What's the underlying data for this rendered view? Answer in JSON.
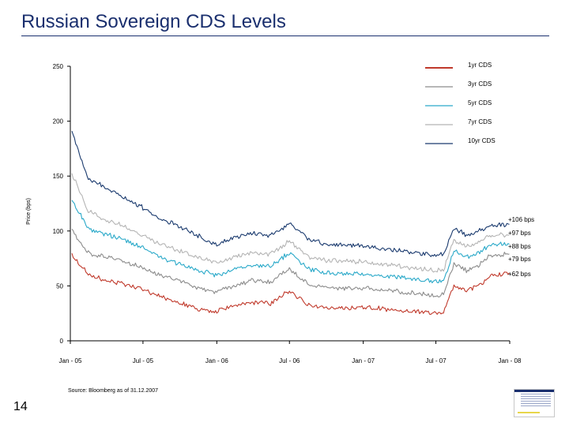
{
  "slide": {
    "title": "Russian Sovereign CDS Levels",
    "page_number": "14",
    "source": "Source: Bloomberg as of 31.12.2007"
  },
  "chart_data": {
    "type": "line",
    "title": "",
    "xlabel": "",
    "ylabel": "Price (bps)",
    "ylim": [
      0,
      250
    ],
    "yticks": [
      0,
      50,
      100,
      150,
      200,
      250
    ],
    "xlim": [
      "2005-01-01",
      "2008-01-01"
    ],
    "xticks": [
      {
        "date": "2005-01-01",
        "label": "Jan - 05"
      },
      {
        "date": "2005-07-01",
        "label": "Jul - 05"
      },
      {
        "date": "2006-01-01",
        "label": "Jan - 06"
      },
      {
        "date": "2006-07-01",
        "label": "Jul - 06"
      },
      {
        "date": "2007-01-01",
        "label": "Jan - 07"
      },
      {
        "date": "2007-07-01",
        "label": "Jul - 07"
      },
      {
        "date": "2008-01-01",
        "label": "Jan - 08"
      }
    ],
    "grid": false,
    "legend": "top-right",
    "series": [
      {
        "name": "1yr CDS",
        "color": "#c0392b",
        "end_label": "+62 bps",
        "x": [
          "2005-01-05",
          "2005-02-15",
          "2005-04-01",
          "2005-05-15",
          "2005-07-01",
          "2005-08-15",
          "2005-10-01",
          "2005-11-15",
          "2006-01-01",
          "2006-02-15",
          "2006-04-01",
          "2006-05-15",
          "2006-07-01",
          "2006-08-15",
          "2006-10-01",
          "2006-11-15",
          "2007-01-01",
          "2007-02-15",
          "2007-04-01",
          "2007-05-15",
          "2007-07-01",
          "2007-07-20",
          "2007-08-15",
          "2007-09-15",
          "2007-10-15",
          "2007-11-15",
          "2007-12-31"
        ],
        "y": [
          78,
          60,
          55,
          52,
          47,
          40,
          35,
          29,
          27,
          32,
          35,
          34,
          46,
          33,
          30,
          30,
          31,
          29,
          28,
          27,
          25,
          26,
          51,
          46,
          50,
          60,
          62
        ]
      },
      {
        "name": "3yr CDS",
        "color": "#8c8c8c",
        "end_label": "+79 bps",
        "x": [
          "2005-01-05",
          "2005-02-15",
          "2005-04-01",
          "2005-05-15",
          "2005-07-01",
          "2005-08-15",
          "2005-10-01",
          "2005-11-15",
          "2006-01-01",
          "2006-02-15",
          "2006-04-01",
          "2006-05-15",
          "2006-07-01",
          "2006-08-15",
          "2006-10-01",
          "2006-11-15",
          "2007-01-01",
          "2007-02-15",
          "2007-04-01",
          "2007-05-15",
          "2007-07-01",
          "2007-07-20",
          "2007-08-15",
          "2007-09-15",
          "2007-10-15",
          "2007-11-15",
          "2007-12-31"
        ],
        "y": [
          100,
          80,
          76,
          73,
          66,
          60,
          55,
          48,
          45,
          51,
          55,
          53,
          66,
          52,
          49,
          48,
          48,
          46,
          45,
          43,
          41,
          42,
          71,
          64,
          69,
          78,
          79
        ]
      },
      {
        "name": "5yr CDS",
        "color": "#2aa9c9",
        "end_label": "+88 bps",
        "x": [
          "2005-01-05",
          "2005-02-15",
          "2005-04-01",
          "2005-05-15",
          "2005-07-01",
          "2005-08-15",
          "2005-10-01",
          "2005-11-15",
          "2006-01-01",
          "2006-02-15",
          "2006-04-01",
          "2006-05-15",
          "2006-07-01",
          "2006-08-15",
          "2006-10-01",
          "2006-11-15",
          "2007-01-01",
          "2007-02-15",
          "2007-04-01",
          "2007-05-15",
          "2007-07-01",
          "2007-07-20",
          "2007-08-15",
          "2007-09-15",
          "2007-10-15",
          "2007-11-15",
          "2007-12-31"
        ],
        "y": [
          128,
          102,
          97,
          92,
          85,
          76,
          70,
          64,
          60,
          66,
          69,
          68,
          80,
          66,
          62,
          61,
          61,
          59,
          58,
          56,
          54,
          55,
          82,
          76,
          80,
          88,
          88
        ]
      },
      {
        "name": "7yr CDS",
        "color": "#b4b4b4",
        "end_label": "+97 bps",
        "x": [
          "2005-01-05",
          "2005-02-15",
          "2005-04-01",
          "2005-05-15",
          "2005-07-01",
          "2005-08-15",
          "2005-10-01",
          "2005-11-15",
          "2006-01-01",
          "2006-02-15",
          "2006-04-01",
          "2006-05-15",
          "2006-07-01",
          "2006-08-15",
          "2006-10-01",
          "2006-11-15",
          "2007-01-01",
          "2007-02-15",
          "2007-04-01",
          "2007-05-15",
          "2007-07-01",
          "2007-07-20",
          "2007-08-15",
          "2007-09-15",
          "2007-10-15",
          "2007-11-15",
          "2007-12-31"
        ],
        "y": [
          152,
          118,
          110,
          104,
          96,
          88,
          82,
          76,
          71,
          77,
          81,
          79,
          91,
          77,
          73,
          72,
          72,
          70,
          68,
          66,
          64,
          65,
          92,
          86,
          90,
          96,
          97
        ]
      },
      {
        "name": "10yr CDS",
        "color": "#1a3a6e",
        "end_label": "+106 bps",
        "x": [
          "2005-01-05",
          "2005-02-15",
          "2005-04-01",
          "2005-05-15",
          "2005-07-01",
          "2005-08-15",
          "2005-10-01",
          "2005-11-15",
          "2006-01-01",
          "2006-02-15",
          "2006-04-01",
          "2006-05-15",
          "2006-07-01",
          "2006-08-15",
          "2006-10-01",
          "2006-11-15",
          "2007-01-01",
          "2007-02-15",
          "2007-04-01",
          "2007-05-15",
          "2007-07-01",
          "2007-07-20",
          "2007-08-15",
          "2007-09-15",
          "2007-10-15",
          "2007-11-15",
          "2007-12-31"
        ],
        "y": [
          190,
          148,
          139,
          131,
          121,
          111,
          104,
          96,
          88,
          95,
          98,
          96,
          107,
          93,
          88,
          87,
          86,
          84,
          82,
          80,
          78,
          79,
          103,
          96,
          100,
          105,
          106
        ]
      }
    ]
  }
}
